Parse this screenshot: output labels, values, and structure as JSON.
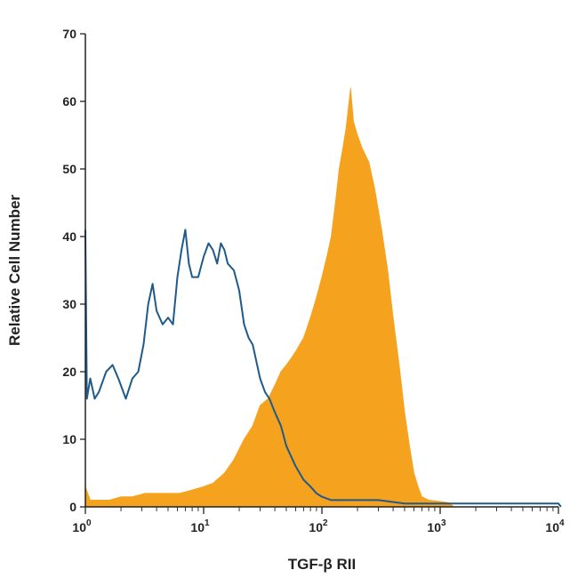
{
  "chart_data": {
    "type": "area",
    "xlabel": "TGF-β RII",
    "ylabel": "Relative Cell Number",
    "x_scale": "log",
    "xlim": [
      1,
      10000
    ],
    "ylim": [
      0,
      70
    ],
    "y_ticks": [
      0,
      10,
      20,
      30,
      40,
      50,
      60,
      70
    ],
    "x_ticks": [
      {
        "value": 1,
        "base": "10",
        "exp": "0"
      },
      {
        "value": 10,
        "base": "10",
        "exp": "1"
      },
      {
        "value": 100,
        "base": "10",
        "exp": "2"
      },
      {
        "value": 1000,
        "base": "10",
        "exp": "3"
      },
      {
        "value": 10000,
        "base": "10",
        "exp": "4"
      }
    ],
    "grid": false,
    "legend": "none",
    "series": [
      {
        "style": "filled",
        "color": "#f5a21f",
        "points": [
          [
            1.0,
            3
          ],
          [
            1.1,
            1
          ],
          [
            1.3,
            1
          ],
          [
            1.6,
            1
          ],
          [
            2.0,
            1.5
          ],
          [
            2.5,
            1.5
          ],
          [
            3.2,
            2
          ],
          [
            4.0,
            2
          ],
          [
            5.0,
            2
          ],
          [
            6.3,
            2
          ],
          [
            8.0,
            2.5
          ],
          [
            10,
            3
          ],
          [
            12,
            3.5
          ],
          [
            15,
            5
          ],
          [
            18,
            7
          ],
          [
            22,
            10
          ],
          [
            26,
            12
          ],
          [
            30,
            15
          ],
          [
            35,
            16
          ],
          [
            40,
            18
          ],
          [
            45,
            20
          ],
          [
            50,
            21
          ],
          [
            55,
            22
          ],
          [
            60,
            23
          ],
          [
            70,
            25
          ],
          [
            80,
            28
          ],
          [
            90,
            31
          ],
          [
            100,
            34
          ],
          [
            110,
            37
          ],
          [
            120,
            40
          ],
          [
            130,
            45
          ],
          [
            140,
            50
          ],
          [
            150,
            53
          ],
          [
            160,
            56
          ],
          [
            175,
            62
          ],
          [
            185,
            57
          ],
          [
            200,
            55
          ],
          [
            220,
            53
          ],
          [
            250,
            51
          ],
          [
            280,
            47
          ],
          [
            320,
            41
          ],
          [
            360,
            35
          ],
          [
            400,
            28
          ],
          [
            450,
            21
          ],
          [
            500,
            14
          ],
          [
            550,
            9
          ],
          [
            600,
            5
          ],
          [
            650,
            3
          ],
          [
            700,
            1.5
          ],
          [
            800,
            1
          ],
          [
            1000,
            0.8
          ],
          [
            1200,
            0.6
          ],
          [
            1300,
            0
          ]
        ]
      },
      {
        "style": "line",
        "color": "#1f5a8a",
        "points": [
          [
            1.0,
            41
          ],
          [
            1.03,
            16
          ],
          [
            1.1,
            19
          ],
          [
            1.2,
            16
          ],
          [
            1.3,
            17
          ],
          [
            1.5,
            20
          ],
          [
            1.7,
            21
          ],
          [
            1.9,
            19
          ],
          [
            2.2,
            16
          ],
          [
            2.5,
            19
          ],
          [
            2.8,
            20
          ],
          [
            3.1,
            24
          ],
          [
            3.4,
            30
          ],
          [
            3.7,
            33
          ],
          [
            4.0,
            29
          ],
          [
            4.5,
            27
          ],
          [
            5.0,
            28
          ],
          [
            5.5,
            27
          ],
          [
            6.0,
            34
          ],
          [
            6.5,
            38
          ],
          [
            7.0,
            41
          ],
          [
            7.5,
            36
          ],
          [
            8.0,
            34
          ],
          [
            9.0,
            34
          ],
          [
            10,
            37
          ],
          [
            11,
            39
          ],
          [
            12,
            38
          ],
          [
            13,
            36
          ],
          [
            14,
            39
          ],
          [
            15,
            38
          ],
          [
            16,
            36
          ],
          [
            18,
            35
          ],
          [
            20,
            32
          ],
          [
            22,
            27
          ],
          [
            24,
            25
          ],
          [
            26,
            24
          ],
          [
            30,
            19
          ],
          [
            33,
            17
          ],
          [
            36,
            16
          ],
          [
            40,
            14
          ],
          [
            45,
            12
          ],
          [
            50,
            9
          ],
          [
            60,
            6
          ],
          [
            70,
            4
          ],
          [
            80,
            3
          ],
          [
            90,
            2
          ],
          [
            100,
            1.5
          ],
          [
            120,
            1
          ],
          [
            150,
            1
          ],
          [
            200,
            1
          ],
          [
            300,
            1
          ],
          [
            500,
            0.5
          ],
          [
            1000,
            0.5
          ],
          [
            3000,
            0.5
          ],
          [
            10000,
            0.5
          ],
          [
            10500,
            0
          ]
        ]
      }
    ]
  }
}
